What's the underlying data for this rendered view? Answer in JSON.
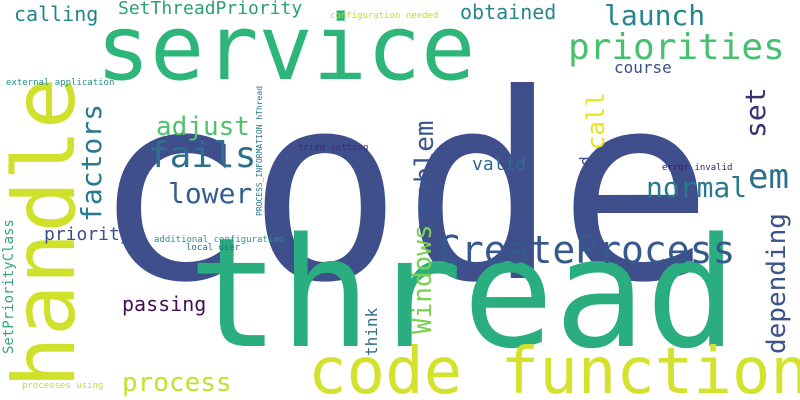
{
  "words": [
    {
      "text": "code",
      "color": "#3f4f8c"
    },
    {
      "text": "thread",
      "color": "#2aae7f"
    },
    {
      "text": "service",
      "color": "#2db57a"
    },
    {
      "text": "code function",
      "color": "#d4e22d"
    },
    {
      "text": "handle",
      "color": "#cfe12b"
    },
    {
      "text": "CreateProcess",
      "color": "#35598d"
    },
    {
      "text": "priorities",
      "color": "#47c16e"
    },
    {
      "text": "em",
      "color": "#2c6f8e"
    },
    {
      "text": "fails",
      "color": "#2f6f8e"
    },
    {
      "text": "launch",
      "color": "#24868e"
    },
    {
      "text": "normal",
      "color": "#287b8e"
    },
    {
      "text": "adjust",
      "color": "#4ec36b"
    },
    {
      "text": "lower",
      "color": "#345f8d"
    },
    {
      "text": "process",
      "color": "#c4df2e"
    },
    {
      "text": "factors",
      "color": "#2a788e"
    },
    {
      "text": "problem",
      "color": "#3a548c"
    },
    {
      "text": "Windows",
      "color": "#7ad151"
    },
    {
      "text": "depending",
      "color": "#3a538b"
    },
    {
      "text": "set",
      "color": "#3e2f75"
    },
    {
      "text": "call",
      "color": "#e7e419"
    },
    {
      "text": "obtained",
      "color": "#27858e"
    },
    {
      "text": "SetThreadPriority",
      "color": "#2da076"
    },
    {
      "text": "calling",
      "color": "#24848d"
    },
    {
      "text": "passing",
      "color": "#440f55"
    },
    {
      "text": "priority",
      "color": "#3a4f8b"
    },
    {
      "text": "valid",
      "color": "#2f6a8e"
    },
    {
      "text": "logged",
      "color": "#3e4c8a"
    },
    {
      "text": "course",
      "color": "#3d4e8a"
    },
    {
      "text": "think",
      "color": "#336c8e"
    },
    {
      "text": "SetPriorityClass",
      "color": "#34a57e"
    },
    {
      "text": "PROCESS_INFORMATION hThread",
      "color": "#29788e"
    },
    {
      "text": "tried setting",
      "color": "#3a2d6d"
    },
    {
      "text": "additional configuration",
      "color": "#23978b"
    },
    {
      "text": "local user",
      "color": "#2c6a8e"
    },
    {
      "text": "external application",
      "color": "#228f8c"
    },
    {
      "text": "configuration needed",
      "color": "#c8d92a"
    },
    {
      "text": "error invalid",
      "color": "#3d1a62"
    },
    {
      "text": "processes using",
      "color": "#c8da2b"
    }
  ]
}
